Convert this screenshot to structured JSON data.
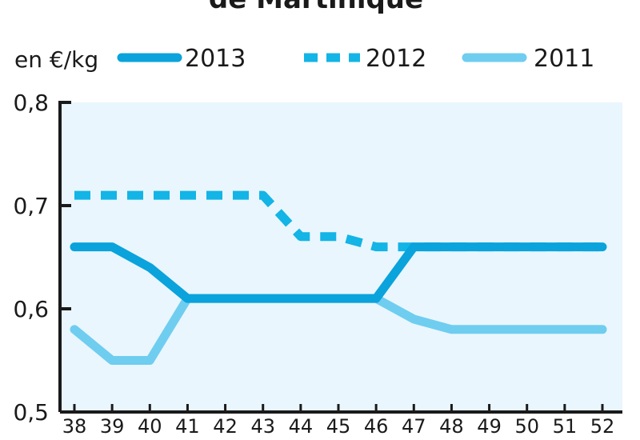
{
  "chart_data": {
    "type": "line",
    "title": "de Martinique",
    "unit_label": "en €/kg",
    "x": [
      38,
      39,
      40,
      41,
      42,
      43,
      44,
      45,
      46,
      47,
      48,
      49,
      50,
      51,
      52
    ],
    "xlim": [
      38,
      52
    ],
    "ylim": [
      0.5,
      0.8
    ],
    "yticks": [
      "0,8",
      "0,7",
      "0,6",
      "0,5"
    ],
    "ytick_values": [
      0.8,
      0.7,
      0.6,
      0.5
    ],
    "grid": false,
    "legend_position": "top",
    "background_color": "#e9f6fd",
    "series": [
      {
        "name": "2013",
        "style": "solid",
        "color": "#0aa3dc",
        "values": [
          0.66,
          0.66,
          0.64,
          0.61,
          0.61,
          0.61,
          0.61,
          0.61,
          0.61,
          0.66,
          0.66,
          0.66,
          0.66,
          0.66,
          0.66
        ]
      },
      {
        "name": "2012",
        "style": "dashed",
        "color": "#13b4e6",
        "values": [
          0.71,
          0.71,
          0.71,
          0.71,
          0.71,
          0.71,
          0.67,
          0.67,
          0.66,
          0.66,
          0.66,
          0.66,
          0.66,
          0.66,
          0.66
        ]
      },
      {
        "name": "2011",
        "style": "solid",
        "color": "#6fcdf0",
        "values": [
          0.58,
          0.55,
          0.55,
          0.61,
          0.61,
          0.61,
          0.61,
          0.61,
          0.61,
          0.59,
          0.58,
          0.58,
          0.58,
          0.58,
          0.58
        ]
      }
    ]
  }
}
